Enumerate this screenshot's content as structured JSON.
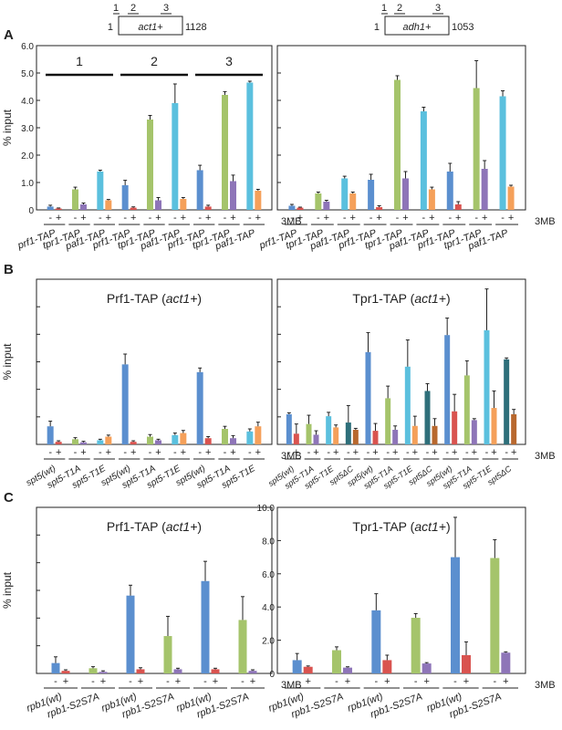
{
  "panels": {
    "A": "A",
    "B": "B",
    "C": "C"
  },
  "gene_maps": [
    {
      "gene": "act1+",
      "start": "1",
      "end": "1128",
      "regions": [
        "1",
        "2",
        "3"
      ]
    },
    {
      "gene": "adh1+",
      "start": "1",
      "end": "1053",
      "regions": [
        "1",
        "2",
        "3"
      ]
    }
  ],
  "treatment_label": "3MB",
  "minus": "-",
  "plus": "+",
  "colors": {
    "blue": "#5b8fcf",
    "red": "#d9534f",
    "green": "#a5c46b",
    "purple": "#8e75b8",
    "cyan": "#5bc0de",
    "orange": "#f5a05a",
    "teal": "#2e6f7a",
    "brown": "#b8682e"
  },
  "chart_data": [
    {
      "type": "bar",
      "panel": "A",
      "ylabel": "% input",
      "ylim": [
        0,
        6.0
      ],
      "yticks": [
        "0",
        "1.0",
        "2.0",
        "3.0",
        "4.0",
        "5.0",
        "6.0"
      ],
      "region_labels": [
        "1",
        "2",
        "3"
      ],
      "groups": [
        {
          "label": "prf1-TAP",
          "bars": [
            {
              "color": "blue",
              "value": 0.12,
              "err": 0.05
            },
            {
              "color": "red",
              "value": 0.05,
              "err": 0.02
            }
          ]
        },
        {
          "label": "tpr1-TAP",
          "bars": [
            {
              "color": "green",
              "value": 0.75,
              "err": 0.08
            },
            {
              "color": "purple",
              "value": 0.2,
              "err": 0.05
            }
          ]
        },
        {
          "label": "paf1-TAP",
          "bars": [
            {
              "color": "cyan",
              "value": 1.4,
              "err": 0.05
            },
            {
              "color": "orange",
              "value": 0.35,
              "err": 0.03
            }
          ]
        },
        {
          "label": "prf1-TAP",
          "bars": [
            {
              "color": "blue",
              "value": 0.9,
              "err": 0.18
            },
            {
              "color": "red",
              "value": 0.08,
              "err": 0.03
            }
          ]
        },
        {
          "label": "tpr1-TAP",
          "bars": [
            {
              "color": "green",
              "value": 3.3,
              "err": 0.15
            },
            {
              "color": "purple",
              "value": 0.35,
              "err": 0.1
            }
          ]
        },
        {
          "label": "paf1-TAP",
          "bars": [
            {
              "color": "cyan",
              "value": 3.9,
              "err": 0.7
            },
            {
              "color": "orange",
              "value": 0.4,
              "err": 0.05
            }
          ]
        },
        {
          "label": "prf1-TAP",
          "bars": [
            {
              "color": "blue",
              "value": 1.45,
              "err": 0.18
            },
            {
              "color": "red",
              "value": 0.12,
              "err": 0.05
            }
          ]
        },
        {
          "label": "tpr1-TAP",
          "bars": [
            {
              "color": "green",
              "value": 4.2,
              "err": 0.12
            },
            {
              "color": "purple",
              "value": 1.05,
              "err": 0.22
            }
          ]
        },
        {
          "label": "paf1-TAP",
          "bars": [
            {
              "color": "cyan",
              "value": 4.65,
              "err": 0.05
            },
            {
              "color": "orange",
              "value": 0.7,
              "err": 0.05
            }
          ]
        }
      ]
    },
    {
      "type": "bar",
      "panel": "A",
      "ylim": [
        0,
        6.0
      ],
      "groups": [
        {
          "label": "prf1-TAP",
          "bars": [
            {
              "color": "blue",
              "value": 0.15,
              "err": 0.05
            },
            {
              "color": "red",
              "value": 0.08,
              "err": 0.02
            }
          ]
        },
        {
          "label": "tpr1-TAP",
          "bars": [
            {
              "color": "green",
              "value": 0.6,
              "err": 0.05
            },
            {
              "color": "purple",
              "value": 0.3,
              "err": 0.05
            }
          ]
        },
        {
          "label": "paf1-TAP",
          "bars": [
            {
              "color": "cyan",
              "value": 1.15,
              "err": 0.08
            },
            {
              "color": "orange",
              "value": 0.6,
              "err": 0.05
            }
          ]
        },
        {
          "label": "prf1-TAP",
          "bars": [
            {
              "color": "blue",
              "value": 1.1,
              "err": 0.2
            },
            {
              "color": "red",
              "value": 0.1,
              "err": 0.05
            }
          ]
        },
        {
          "label": "tpr1-TAP",
          "bars": [
            {
              "color": "green",
              "value": 4.75,
              "err": 0.15
            },
            {
              "color": "purple",
              "value": 1.15,
              "err": 0.25
            }
          ]
        },
        {
          "label": "paf1-TAP",
          "bars": [
            {
              "color": "cyan",
              "value": 3.6,
              "err": 0.15
            },
            {
              "color": "orange",
              "value": 0.75,
              "err": 0.08
            }
          ]
        },
        {
          "label": "prf1-TAP",
          "bars": [
            {
              "color": "blue",
              "value": 1.4,
              "err": 0.3
            },
            {
              "color": "red",
              "value": 0.2,
              "err": 0.1
            }
          ]
        },
        {
          "label": "tpr1-TAP",
          "bars": [
            {
              "color": "green",
              "value": 4.45,
              "err": 1.0
            },
            {
              "color": "purple",
              "value": 1.5,
              "err": 0.3
            }
          ]
        },
        {
          "label": "paf1-TAP",
          "bars": [
            {
              "color": "cyan",
              "value": 4.15,
              "err": 0.2
            },
            {
              "color": "orange",
              "value": 0.85,
              "err": 0.05
            }
          ]
        }
      ]
    },
    {
      "type": "bar",
      "panel": "B",
      "title": "Prf1-TAP (act1+)",
      "ylabel": "% input",
      "ylim": [
        0,
        3.2
      ],
      "groups": [
        {
          "label": "spt5(wt)",
          "bars": [
            {
              "color": "blue",
              "value": 0.35,
              "err": 0.1
            },
            {
              "color": "red",
              "value": 0.05,
              "err": 0.02
            }
          ]
        },
        {
          "label": "spt5-T1A",
          "bars": [
            {
              "color": "green",
              "value": 0.1,
              "err": 0.03
            },
            {
              "color": "purple",
              "value": 0.04,
              "err": 0.02
            }
          ]
        },
        {
          "label": "spt5-T1E",
          "bars": [
            {
              "color": "cyan",
              "value": 0.08,
              "err": 0.02
            },
            {
              "color": "orange",
              "value": 0.15,
              "err": 0.03
            }
          ]
        },
        {
          "label": "spt5(wt)",
          "bars": [
            {
              "color": "blue",
              "value": 1.55,
              "err": 0.2
            },
            {
              "color": "red",
              "value": 0.05,
              "err": 0.02
            }
          ]
        },
        {
          "label": "spt5-T1A",
          "bars": [
            {
              "color": "green",
              "value": 0.15,
              "err": 0.04
            },
            {
              "color": "purple",
              "value": 0.08,
              "err": 0.02
            }
          ]
        },
        {
          "label": "spt5-T1E",
          "bars": [
            {
              "color": "cyan",
              "value": 0.18,
              "err": 0.04
            },
            {
              "color": "orange",
              "value": 0.22,
              "err": 0.05
            }
          ]
        },
        {
          "label": "spt5(wt)",
          "bars": [
            {
              "color": "blue",
              "value": 1.4,
              "err": 0.08
            },
            {
              "color": "red",
              "value": 0.12,
              "err": 0.03
            }
          ]
        },
        {
          "label": "spt5-T1A",
          "bars": [
            {
              "color": "green",
              "value": 0.3,
              "err": 0.05
            },
            {
              "color": "purple",
              "value": 0.12,
              "err": 0.05
            }
          ]
        },
        {
          "label": "spt5-T1E",
          "bars": [
            {
              "color": "cyan",
              "value": 0.25,
              "err": 0.05
            },
            {
              "color": "orange",
              "value": 0.35,
              "err": 0.08
            }
          ]
        }
      ]
    },
    {
      "type": "bar",
      "panel": "B",
      "title": "Tpr1-TAP (act1+)",
      "ylim": [
        0,
        3.4
      ],
      "groups": [
        {
          "label": "spt5(wt)",
          "bars": [
            {
              "color": "blue",
              "value": 0.62,
              "err": 0.03
            },
            {
              "color": "red",
              "value": 0.22,
              "err": 0.2
            }
          ]
        },
        {
          "label": "spt5-T1A",
          "bars": [
            {
              "color": "green",
              "value": 0.42,
              "err": 0.18
            },
            {
              "color": "purple",
              "value": 0.2,
              "err": 0.08
            }
          ]
        },
        {
          "label": "spt5-T1E",
          "bars": [
            {
              "color": "cyan",
              "value": 0.58,
              "err": 0.08
            },
            {
              "color": "orange",
              "value": 0.35,
              "err": 0.05
            }
          ]
        },
        {
          "label": "spt5ΔC",
          "bars": [
            {
              "color": "teal",
              "value": 0.45,
              "err": 0.35
            },
            {
              "color": "brown",
              "value": 0.3,
              "err": 0.03
            }
          ]
        },
        {
          "label": "spt5(wt)",
          "bars": [
            {
              "color": "blue",
              "value": 1.9,
              "err": 0.4
            },
            {
              "color": "red",
              "value": 0.28,
              "err": 0.15
            }
          ]
        },
        {
          "label": "spt5-T1A",
          "bars": [
            {
              "color": "green",
              "value": 0.95,
              "err": 0.25
            },
            {
              "color": "purple",
              "value": 0.3,
              "err": 0.08
            }
          ]
        },
        {
          "label": "spt5-T1E",
          "bars": [
            {
              "color": "cyan",
              "value": 1.6,
              "err": 0.55
            },
            {
              "color": "orange",
              "value": 0.38,
              "err": 0.2
            }
          ]
        },
        {
          "label": "spt5ΔC",
          "bars": [
            {
              "color": "teal",
              "value": 1.1,
              "err": 0.15
            },
            {
              "color": "brown",
              "value": 0.38,
              "err": 0.15
            }
          ]
        },
        {
          "label": "spt5(wt)",
          "bars": [
            {
              "color": "blue",
              "value": 2.25,
              "err": 0.35
            },
            {
              "color": "red",
              "value": 0.68,
              "err": 0.35
            }
          ]
        },
        {
          "label": "spt5-T1A",
          "bars": [
            {
              "color": "green",
              "value": 1.42,
              "err": 0.3
            },
            {
              "color": "purple",
              "value": 0.5,
              "err": 0.03
            }
          ]
        },
        {
          "label": "spt5-T1E",
          "bars": [
            {
              "color": "cyan",
              "value": 2.35,
              "err": 0.85
            },
            {
              "color": "orange",
              "value": 0.75,
              "err": 0.35
            }
          ]
        },
        {
          "label": "spt5ΔC",
          "bars": [
            {
              "color": "teal",
              "value": 1.75,
              "err": 0.03
            },
            {
              "color": "brown",
              "value": 0.62,
              "err": 0.1
            }
          ]
        }
      ]
    },
    {
      "type": "bar",
      "panel": "C",
      "title": "Prf1-TAP (act1+)",
      "ylabel": "% input",
      "ylim": [
        0,
        3.2
      ],
      "groups": [
        {
          "label": "rpb1(wt)",
          "bars": [
            {
              "color": "blue",
              "value": 0.2,
              "err": 0.12
            },
            {
              "color": "red",
              "value": 0.05,
              "err": 0.02
            }
          ]
        },
        {
          "label": "rpb1-S2S7A",
          "bars": [
            {
              "color": "green",
              "value": 0.1,
              "err": 0.03
            },
            {
              "color": "purple",
              "value": 0.03,
              "err": 0.02
            }
          ]
        },
        {
          "label": "rpb1(wt)",
          "bars": [
            {
              "color": "blue",
              "value": 1.5,
              "err": 0.2
            },
            {
              "color": "red",
              "value": 0.08,
              "err": 0.03
            }
          ]
        },
        {
          "label": "rpb1-S2S7A",
          "bars": [
            {
              "color": "green",
              "value": 0.72,
              "err": 0.38
            },
            {
              "color": "purple",
              "value": 0.08,
              "err": 0.02
            }
          ]
        },
        {
          "label": "rpb1(wt)",
          "bars": [
            {
              "color": "blue",
              "value": 1.78,
              "err": 0.38
            },
            {
              "color": "red",
              "value": 0.08,
              "err": 0.02
            }
          ]
        },
        {
          "label": "rpb1-S2S7A",
          "bars": [
            {
              "color": "green",
              "value": 1.03,
              "err": 0.45
            },
            {
              "color": "purple",
              "value": 0.05,
              "err": 0.02
            }
          ]
        }
      ]
    },
    {
      "type": "bar",
      "panel": "C",
      "title": "Tpr1-TAP (act1+)",
      "ylim": [
        0,
        10.0
      ],
      "yticks": [
        "0",
        "2.0",
        "4.0",
        "6.0",
        "8.0",
        "10.0"
      ],
      "groups": [
        {
          "label": "rpb1(wt)",
          "bars": [
            {
              "color": "blue",
              "value": 0.8,
              "err": 0.4
            },
            {
              "color": "red",
              "value": 0.4,
              "err": 0.05
            }
          ]
        },
        {
          "label": "rpb1-S2S7A",
          "bars": [
            {
              "color": "green",
              "value": 1.4,
              "err": 0.2
            },
            {
              "color": "purple",
              "value": 0.35,
              "err": 0.05
            }
          ]
        },
        {
          "label": "rpb1(wt)",
          "bars": [
            {
              "color": "blue",
              "value": 3.8,
              "err": 1.0
            },
            {
              "color": "red",
              "value": 0.8,
              "err": 0.3
            }
          ]
        },
        {
          "label": "rpb1-S2S7A",
          "bars": [
            {
              "color": "green",
              "value": 3.35,
              "err": 0.25
            },
            {
              "color": "purple",
              "value": 0.6,
              "err": 0.05
            }
          ]
        },
        {
          "label": "rpb1(wt)",
          "bars": [
            {
              "color": "blue",
              "value": 7.0,
              "err": 2.4
            },
            {
              "color": "red",
              "value": 1.1,
              "err": 0.8
            }
          ]
        },
        {
          "label": "rpb1-S2S7A",
          "bars": [
            {
              "color": "green",
              "value": 6.95,
              "err": 1.1
            },
            {
              "color": "purple",
              "value": 1.25,
              "err": 0.05
            }
          ]
        }
      ]
    }
  ]
}
